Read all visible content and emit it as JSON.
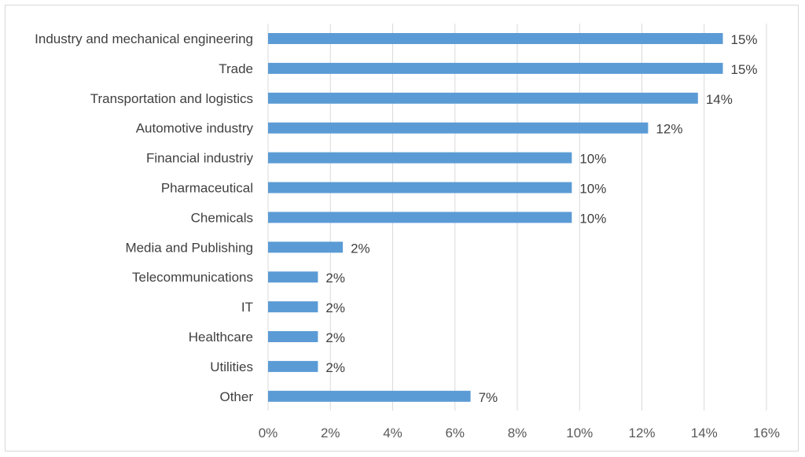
{
  "chart_data": {
    "type": "bar",
    "orientation": "horizontal",
    "categories": [
      "Industry and mechanical engineering",
      "Trade",
      "Transportation and logistics",
      "Automotive industry",
      "Financial industriy",
      "Pharmaceutical",
      "Chemicals",
      "Media and Publishing",
      "Telecommunications",
      "IT",
      "Healthcare",
      "Utilities",
      "Other"
    ],
    "values": [
      14.6,
      14.6,
      13.8,
      12.2,
      9.75,
      9.75,
      9.75,
      2.4,
      1.6,
      1.6,
      1.6,
      1.6,
      6.5
    ],
    "data_labels": [
      "15%",
      "15%",
      "14%",
      "12%",
      "10%",
      "10%",
      "10%",
      "2%",
      "2%",
      "2%",
      "2%",
      "2%",
      "7%"
    ],
    "xlim": [
      0,
      16
    ],
    "x_ticks": [
      0,
      2,
      4,
      6,
      8,
      10,
      12,
      14,
      16
    ],
    "x_tick_labels": [
      "0%",
      "2%",
      "4%",
      "6%",
      "8%",
      "10%",
      "12%",
      "14%",
      "16%"
    ],
    "grid": "vertical",
    "bar_color": "#5b9bd5",
    "grid_color": "#d9d9d9",
    "title": "",
    "xlabel": "",
    "ylabel": ""
  }
}
